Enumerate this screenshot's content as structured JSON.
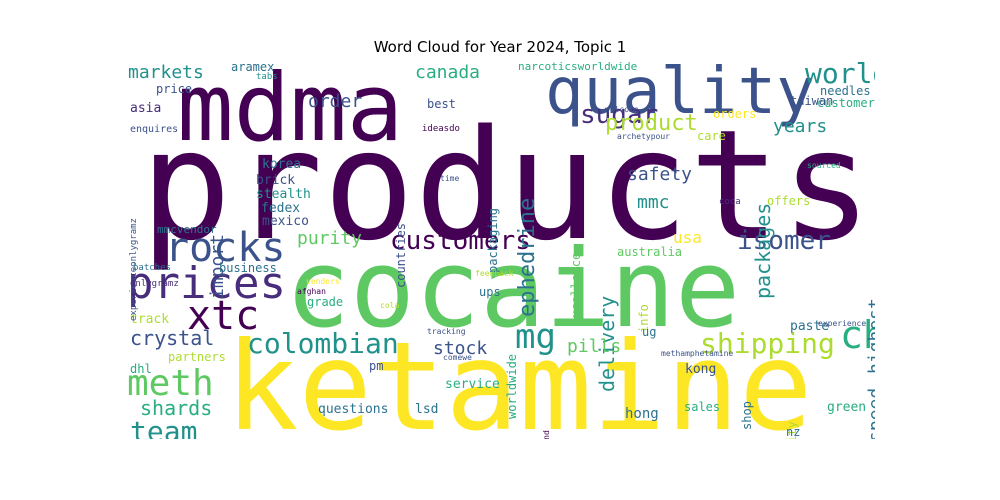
{
  "title": "Word Cloud for Year 2024, Topic 1",
  "colors": {
    "purple": "#440154",
    "indigo": "#472d7b",
    "blue": "#3b528b",
    "steel": "#2c728e",
    "teal": "#21918c",
    "green": "#28ae80",
    "lime": "#5ec962",
    "yellowgreen": "#addc30",
    "yellow": "#fde725"
  },
  "words": {
    "products": "products",
    "cocaine": "cocaine",
    "ketamine": "ketamine",
    "mdma": "mdma",
    "quality": "quality",
    "prices": "prices",
    "rocks": "rocks",
    "meth": "meth",
    "xtc": "xtc",
    "champagne": "champagne",
    "customers": "customers",
    "colombian": "colombian",
    "shipping": "shipping",
    "mg": "mg",
    "isomer": "isomer",
    "world": "world",
    "sugar": "sugar",
    "product": "product",
    "ephedrine": "ephedrine",
    "packages": "packages",
    "years": "years",
    "team": "team",
    "shards": "shards",
    "crystal": "crystal",
    "markets": "markets",
    "order": "order",
    "canada": "canada",
    "safety": "safety",
    "mmc": "mmc",
    "purity": "purity",
    "usa": "usa",
    "delivery": "delivery",
    "pills": "pills",
    "stock": "stock",
    "import": "import",
    "speed": "speed",
    "highest": "highest",
    "korea": "korea",
    "brick": "brick",
    "stealth": "stealth",
    "fedex": "fedex",
    "mexico": "mexico",
    "mmcvendor": "mmcvendor",
    "business": "business",
    "grade": "grade",
    "ups": "ups",
    "track": "track",
    "partners": "partners",
    "dhl": "dhl",
    "questions": "questions",
    "lsd": "lsd",
    "service": "service",
    "pm": "pm",
    "hong": "hong",
    "kong": "kong",
    "sales": "sales",
    "shop": "shop",
    "security": "security",
    "nz": "nz",
    "green": "green",
    "paste": "paste",
    "info": "info",
    "ug": "ug",
    "worldwide": "worldwide",
    "australia": "australia",
    "excellence": "excellence",
    "packaging": "packaging",
    "countries": "countries",
    "narcoticsworldwide": "narcoticsworldwide",
    "aramex": "aramex",
    "tabs": "tabs",
    "price": "price",
    "asia": "asia",
    "best": "best",
    "enquires": "enquires",
    "ideasdo": "ideasdo",
    "experienceonlygramz": "experienceonlygramz",
    "batches": "batches",
    "onlygramz": "onlygramz",
    "needles": "needles",
    "customer": "customer",
    "taiwan": "taiwan",
    "welcome": "welcome",
    "orders": "orders",
    "archetypour": "archetypour",
    "care": "care",
    "operatingto": "operatingto",
    "sourced": "sourced",
    "time": "time",
    "offers": "offers",
    "coca": "coca",
    "vendors": "vendors",
    "feedback": "feedback",
    "cola": "cola",
    "afghan": "afghan",
    "tracking": "tracking",
    "comewe": "comewe",
    "methamphetamine": "methamphetamine",
    "experience": "experience",
    "weekdaysfind": "weekdaysfind"
  }
}
